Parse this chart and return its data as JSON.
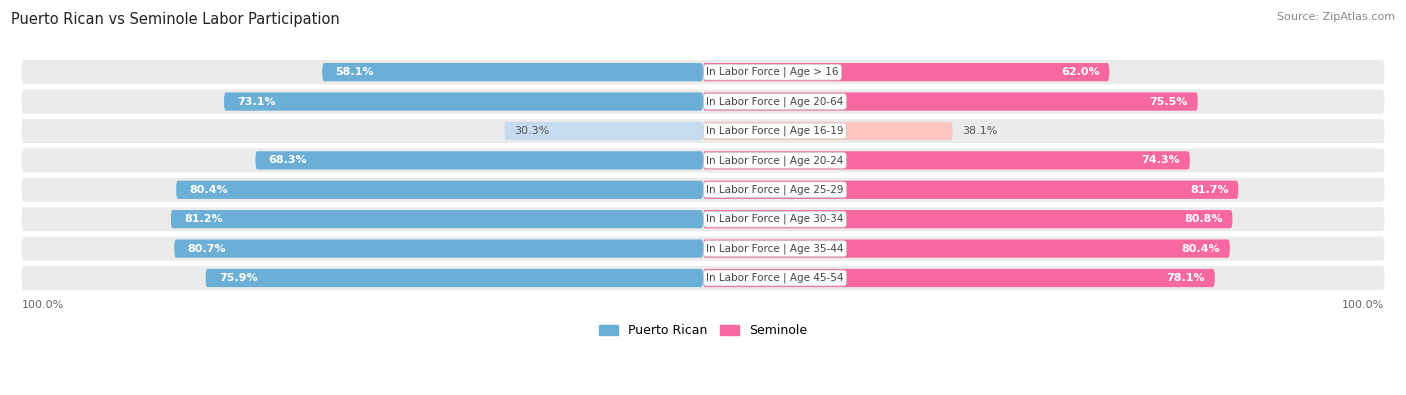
{
  "title": "Puerto Rican vs Seminole Labor Participation",
  "source": "Source: ZipAtlas.com",
  "categories": [
    "In Labor Force | Age > 16",
    "In Labor Force | Age 20-64",
    "In Labor Force | Age 16-19",
    "In Labor Force | Age 20-24",
    "In Labor Force | Age 25-29",
    "In Labor Force | Age 30-34",
    "In Labor Force | Age 35-44",
    "In Labor Force | Age 45-54"
  ],
  "puerto_rican": [
    58.1,
    73.1,
    30.3,
    68.3,
    80.4,
    81.2,
    80.7,
    75.9
  ],
  "seminole": [
    62.0,
    75.5,
    38.1,
    74.3,
    81.7,
    80.8,
    80.4,
    78.1
  ],
  "blue_color": "#6baed6",
  "blue_light_color": "#c6dbef",
  "pink_color": "#f768a1",
  "pink_light_color": "#fcc5c0",
  "row_bg_even": "#f2f2f2",
  "row_bg_odd": "#e8e8e8",
  "background_color": "#ffffff",
  "label_fontsize": 8.0,
  "title_fontsize": 10.5,
  "legend_fontsize": 9,
  "source_fontsize": 8
}
